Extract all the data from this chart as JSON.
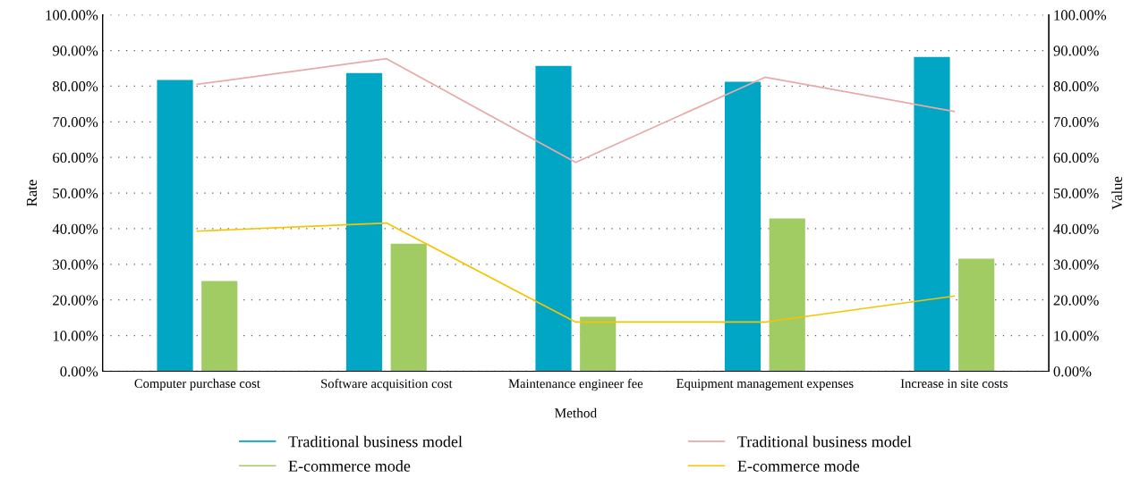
{
  "chart_data": {
    "type": "bar",
    "xlabel": "Method",
    "ylabel": "Rate",
    "y2label": "Value",
    "categories": [
      "Computer purchase cost",
      "Software acquisition cost",
      "Maintenance engineer fee",
      "Equipment management expenses",
      "Increase in site costs"
    ],
    "series": [
      {
        "name": "Traditional business model",
        "color": "#00a6c4",
        "values": [
          81.7,
          83.7,
          85.7,
          81.2,
          88.2
        ]
      },
      {
        "name": "E-commerce mode",
        "color": "#a1cc63",
        "values": [
          25.3,
          35.8,
          15.3,
          42.9,
          31.6
        ]
      },
      {
        "name": "Traditional business model",
        "type": "line",
        "color": "#e8a9a9",
        "values": [
          80.5,
          87.7,
          58.6,
          82.5,
          72.9
        ]
      },
      {
        "name": "E-commerce mode",
        "type": "line",
        "color": "#f5c400",
        "values": [
          39.3,
          41.6,
          13.8,
          13.8,
          21.1
        ]
      }
    ],
    "ylim": [
      0,
      100
    ],
    "yticks": [
      {
        "value": 0,
        "label": "0.00%"
      },
      {
        "value": 10,
        "label": "10.00%"
      },
      {
        "value": 20,
        "label": "20.00%"
      },
      {
        "value": 30,
        "label": "30.00%"
      },
      {
        "value": 40,
        "label": "40.00%"
      },
      {
        "value": 50,
        "label": "50.00%"
      },
      {
        "value": 60,
        "label": "60.00%"
      },
      {
        "value": 70,
        "label": "70.00%"
      },
      {
        "value": 80,
        "label": "80.00%"
      },
      {
        "value": 90,
        "label": "90.00%"
      },
      {
        "value": 100,
        "label": "100.00%"
      }
    ],
    "y2lim": [
      0,
      100
    ],
    "y2ticks": [
      {
        "value": 0,
        "label": "0.00%"
      },
      {
        "value": 10,
        "label": "10.00%"
      },
      {
        "value": 20,
        "label": "20.00%"
      },
      {
        "value": 30,
        "label": "30.00%"
      },
      {
        "value": 40,
        "label": "40.00%"
      },
      {
        "value": 50,
        "label": "50.00%"
      },
      {
        "value": 60,
        "label": "60.00%"
      },
      {
        "value": 70,
        "label": "70.00%"
      },
      {
        "value": 80,
        "label": "80.00%"
      },
      {
        "value": 90,
        "label": "90.00%"
      },
      {
        "value": 100,
        "label": "100.00%"
      }
    ],
    "grid": "y",
    "legend": "bottom",
    "marker": "none",
    "line_style": "solid"
  }
}
